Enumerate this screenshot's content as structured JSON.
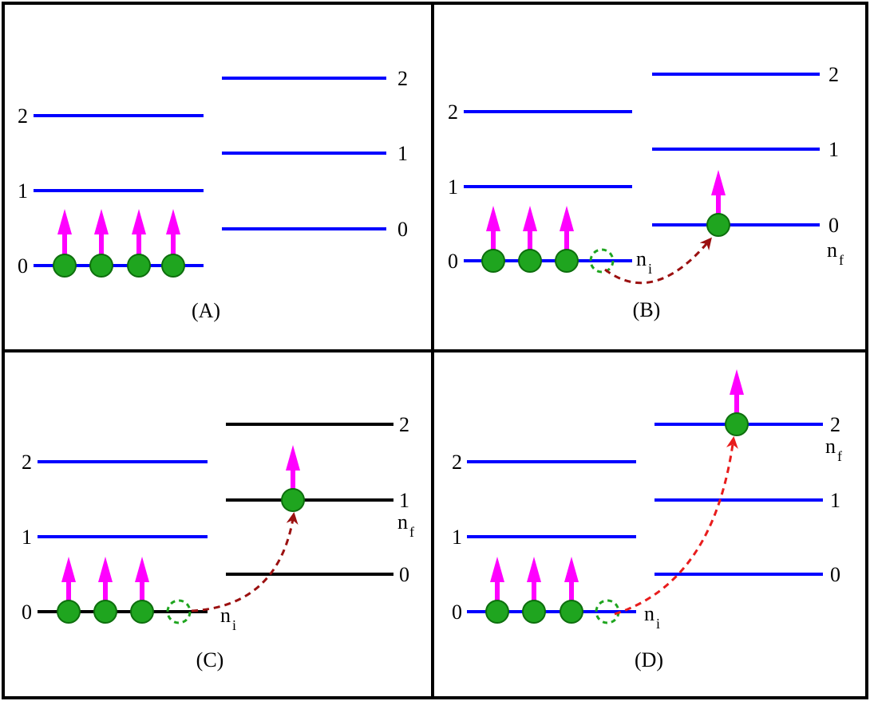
{
  "panels": {
    "A": {
      "caption": "(A)",
      "left_levels": [
        "2",
        "1",
        "0"
      ],
      "right_levels": [
        "2",
        "1",
        "0"
      ]
    },
    "B": {
      "caption": "(B)",
      "left_levels": [
        "2",
        "1",
        "0"
      ],
      "right_levels": [
        "2",
        "1",
        "0"
      ],
      "ni_base": "n",
      "ni_sub": "i",
      "nf_base": "n",
      "nf_sub": "f"
    },
    "C": {
      "caption": "(C)",
      "left_levels": [
        "2",
        "1",
        "0"
      ],
      "right_levels": [
        "2",
        "1",
        "0"
      ],
      "ni_base": "n",
      "ni_sub": "i",
      "nf_base": "n",
      "nf_sub": "f"
    },
    "D": {
      "caption": "(D)",
      "left_levels": [
        "2",
        "1",
        "0"
      ],
      "right_levels": [
        "2",
        "1",
        "0"
      ],
      "ni_base": "n",
      "ni_sub": "i",
      "nf_base": "n",
      "nf_sub": "f"
    }
  },
  "colors": {
    "level_blue": "#0000ff",
    "level_black": "#000000",
    "particle_fill": "#1fa51f",
    "particle_stroke": "#0d6e0d",
    "spin_arrow": "#ff00ff",
    "hop_dark_red": "#9b1010",
    "hop_red": "#e81c1c"
  }
}
